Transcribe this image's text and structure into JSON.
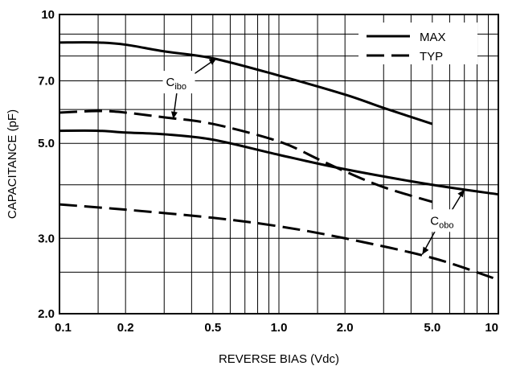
{
  "chart_data": {
    "type": "line",
    "title": "",
    "xlabel": "REVERSE BIAS (Vdc)",
    "ylabel": "CAPACITANCE (pF)",
    "xscale": "log",
    "yscale": "log",
    "xlim": [
      0.1,
      10
    ],
    "ylim": [
      2.0,
      10
    ],
    "grid": true,
    "legend_position": "top-right",
    "x_ticks": [
      {
        "value": 0.1,
        "label": "0.1"
      },
      {
        "value": 0.2,
        "label": "0.2"
      },
      {
        "value": 0.5,
        "label": "0.5"
      },
      {
        "value": 1.0,
        "label": "1.0"
      },
      {
        "value": 2.0,
        "label": "2.0"
      },
      {
        "value": 5.0,
        "label": "5.0"
      },
      {
        "value": 10,
        "label": "10"
      }
    ],
    "y_ticks": [
      {
        "value": 2.0,
        "label": "2.0"
      },
      {
        "value": 3.0,
        "label": "3.0"
      },
      {
        "value": 5.0,
        "label": "5.0"
      },
      {
        "value": 7.0,
        "label": "7.0"
      },
      {
        "value": 10,
        "label": "10"
      }
    ],
    "x_grid": [
      0.1,
      0.15,
      0.2,
      0.3,
      0.4,
      0.5,
      0.6,
      0.7,
      0.8,
      0.9,
      1,
      1.5,
      2,
      3,
      4,
      5,
      6,
      7,
      8,
      9,
      10
    ],
    "y_grid": [
      2.0,
      2.5,
      3.0,
      4.0,
      5.0,
      6.0,
      7.0,
      8.0,
      9.0,
      10
    ],
    "legend": [
      {
        "label": "MAX",
        "dash": "solid"
      },
      {
        "label": "TYP",
        "dash": "dashed"
      }
    ],
    "series": [
      {
        "group": "Cibo",
        "kind": "MAX",
        "dash": "solid",
        "x": [
          0.1,
          0.15,
          0.2,
          0.3,
          0.5,
          1.0,
          2.0,
          3.0,
          5.0
        ],
        "y": [
          8.6,
          8.6,
          8.5,
          8.2,
          7.9,
          7.2,
          6.5,
          6.05,
          5.55
        ]
      },
      {
        "group": "Cibo",
        "kind": "TYP",
        "dash": "dashed",
        "x": [
          0.1,
          0.15,
          0.2,
          0.3,
          0.5,
          1.0,
          1.5,
          2.0,
          3.0,
          5.0
        ],
        "y": [
          5.9,
          5.95,
          5.9,
          5.75,
          5.55,
          5.05,
          4.6,
          4.3,
          3.95,
          3.65
        ]
      },
      {
        "group": "Cobo",
        "kind": "MAX",
        "dash": "solid",
        "x": [
          0.1,
          0.15,
          0.2,
          0.3,
          0.5,
          1.0,
          2.0,
          5.0,
          10
        ],
        "y": [
          5.35,
          5.35,
          5.3,
          5.25,
          5.1,
          4.7,
          4.35,
          4.0,
          3.8
        ]
      },
      {
        "group": "Cobo",
        "kind": "TYP",
        "dash": "dashed",
        "x": [
          0.1,
          0.2,
          0.5,
          1.0,
          2.0,
          5.0,
          10
        ],
        "y": [
          3.6,
          3.5,
          3.35,
          3.2,
          3.0,
          2.7,
          2.4
        ]
      }
    ],
    "annotations": [
      {
        "label": "C",
        "sub": "ibo",
        "x": 0.35,
        "y": 6.95,
        "arrows_to": [
          {
            "x": 0.52,
            "y": 7.9
          },
          {
            "x": 0.33,
            "y": 5.7
          }
        ]
      },
      {
        "label": "C",
        "sub": "obo",
        "x": 5.6,
        "y": 3.3,
        "arrows_to": [
          {
            "x": 7.0,
            "y": 3.9
          },
          {
            "x": 4.5,
            "y": 2.75
          }
        ]
      }
    ]
  }
}
